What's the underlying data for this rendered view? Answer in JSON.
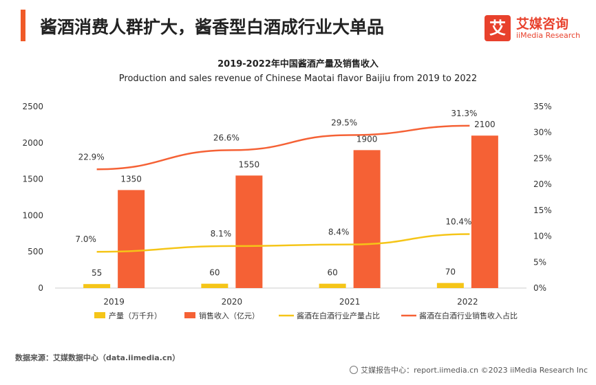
{
  "header": {
    "title": "酱酒消费人群扩大，酱香型白酒成行业大单品",
    "accent_color": "#f05a28"
  },
  "logo": {
    "glyph": "艾",
    "cn": "艾媒咨询",
    "en": "iiMedia Research",
    "color": "#e8412c"
  },
  "chart_data": {
    "type": "bar",
    "title": "2019-2022年中国酱酒产量及销售收入",
    "subtitle": "Production and sales revenue of Chinese Maotai flavor Baijiu from 2019 to 2022",
    "categories": [
      "2019",
      "2020",
      "2021",
      "2022"
    ],
    "left_axis": {
      "ticks": [
        "0",
        "500",
        "1000",
        "1500",
        "2000",
        "2500"
      ],
      "min": 0,
      "max": 2500
    },
    "right_axis": {
      "ticks": [
        "0%",
        "5%",
        "10%",
        "15%",
        "20%",
        "25%",
        "30%",
        "35%"
      ],
      "min": 0,
      "max": 35
    },
    "bar_series": [
      {
        "name": "产量（万千升）",
        "color": "#f5c518",
        "values": [
          55,
          60,
          60,
          70
        ],
        "labels": [
          "55",
          "60",
          "60",
          "70"
        ]
      },
      {
        "name": "销售收入（亿元）",
        "color": "#f56135",
        "values": [
          1350,
          1550,
          1900,
          2100
        ],
        "labels": [
          "1350",
          "1550",
          "1900",
          "2100"
        ]
      }
    ],
    "line_series": [
      {
        "name": "酱酒在白酒行业产量占比",
        "color": "#f5c518",
        "values": [
          7.0,
          8.1,
          8.4,
          10.4
        ],
        "labels": [
          "7.0%",
          "8.1%",
          "8.4%",
          "10.4%"
        ]
      },
      {
        "name": "酱酒在白酒行业销售收入占比",
        "color": "#f56135",
        "values": [
          22.9,
          26.6,
          29.5,
          31.3
        ],
        "labels": [
          "22.9%",
          "26.6%",
          "29.5%",
          "31.3%"
        ]
      }
    ]
  },
  "source": "数据来源：艾媒数据中心（data.iimedia.cn）",
  "footer": "艾媒报告中心：report.iimedia.cn  ©2023  iiMedia Research  Inc"
}
